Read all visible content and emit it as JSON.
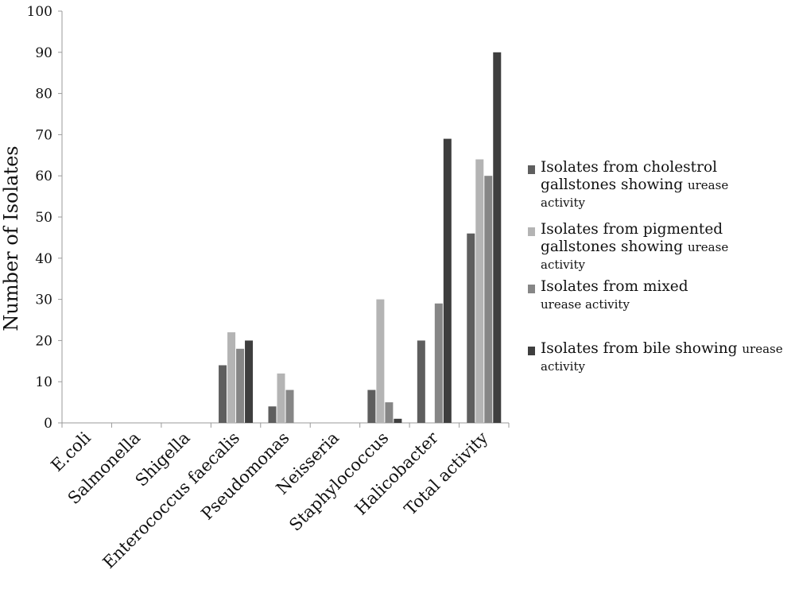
{
  "chart_data": {
    "type": "bar",
    "title": "",
    "xlabel": "",
    "ylabel": "Number of Isolates",
    "ylim": [
      0,
      100
    ],
    "yticks": [
      0,
      10,
      20,
      30,
      40,
      50,
      60,
      70,
      80,
      90,
      100
    ],
    "grid": false,
    "legend_position": "right",
    "categories": [
      "E.coli",
      "Salmonella",
      "Shigella",
      "Enterococcus faecalis",
      "Pseudomonas",
      "Neisseria",
      "Staphylococcus",
      "Halicobacter",
      "Total activity"
    ],
    "series": [
      {
        "name": "Isolates from cholestrol gallstones showing urease activity",
        "color": "#5e5e5e",
        "legend_parts": [
          "Isolates from cholestrol gallstones showing",
          "urease",
          "activity"
        ],
        "values": [
          0,
          0,
          0,
          14,
          4,
          0,
          8,
          20,
          46
        ]
      },
      {
        "name": "Isolates from pigmented gallstones showing urease activity",
        "color": "#b4b4b4",
        "legend_parts": [
          "Isolates from pigmented gallstones showing",
          "urease",
          "activity"
        ],
        "values": [
          0,
          0,
          0,
          22,
          12,
          0,
          30,
          0,
          64
        ]
      },
      {
        "name": "Isolates from mixed urease activity",
        "color": "#868686",
        "legend_parts": [
          "Isolates from mixed",
          "urease activity",
          ""
        ],
        "values": [
          0,
          0,
          0,
          18,
          8,
          0,
          5,
          29,
          60
        ]
      },
      {
        "name": "Isolates from bile showing urease activity",
        "color": "#3e3e3e",
        "legend_parts": [
          "Isolates from bile showing",
          "urease",
          "activity"
        ],
        "values": [
          0,
          0,
          0,
          20,
          0,
          0,
          1,
          69,
          90
        ]
      }
    ]
  }
}
